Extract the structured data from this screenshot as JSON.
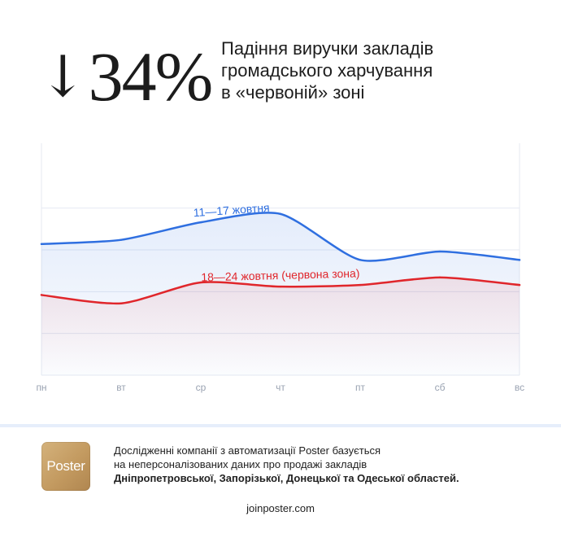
{
  "headline": {
    "arrow": "↓",
    "percent": "34%"
  },
  "title_lines": [
    "Падіння виручки закладів",
    "громадського харчування",
    "в «червоній» зоні"
  ],
  "chart_data": {
    "type": "line",
    "categories": [
      "пн",
      "вт",
      "ср",
      "чт",
      "пт",
      "сб",
      "вс"
    ],
    "series": [
      {
        "name": "11—17 жовтня",
        "color": "#2f6fe0",
        "values": [
          157,
          162,
          183,
          193,
          138,
          148,
          138
        ]
      },
      {
        "name": "18—24 жовтня (червона зона)",
        "color": "#e0262b",
        "values": [
          96,
          86,
          111,
          106,
          108,
          117,
          108
        ]
      }
    ],
    "ylim": [
      0,
      300
    ],
    "grid": true
  },
  "footer": {
    "logo_text": "Poster",
    "line1": "Дослідженні компанії з автоматизації Poster базується",
    "line2": "на неперсоналізованих даних про продажі закладів",
    "line3": "Дніпропетровської, Запорізької, Донецької та Одеської областей.",
    "site": "joinposter.com"
  }
}
